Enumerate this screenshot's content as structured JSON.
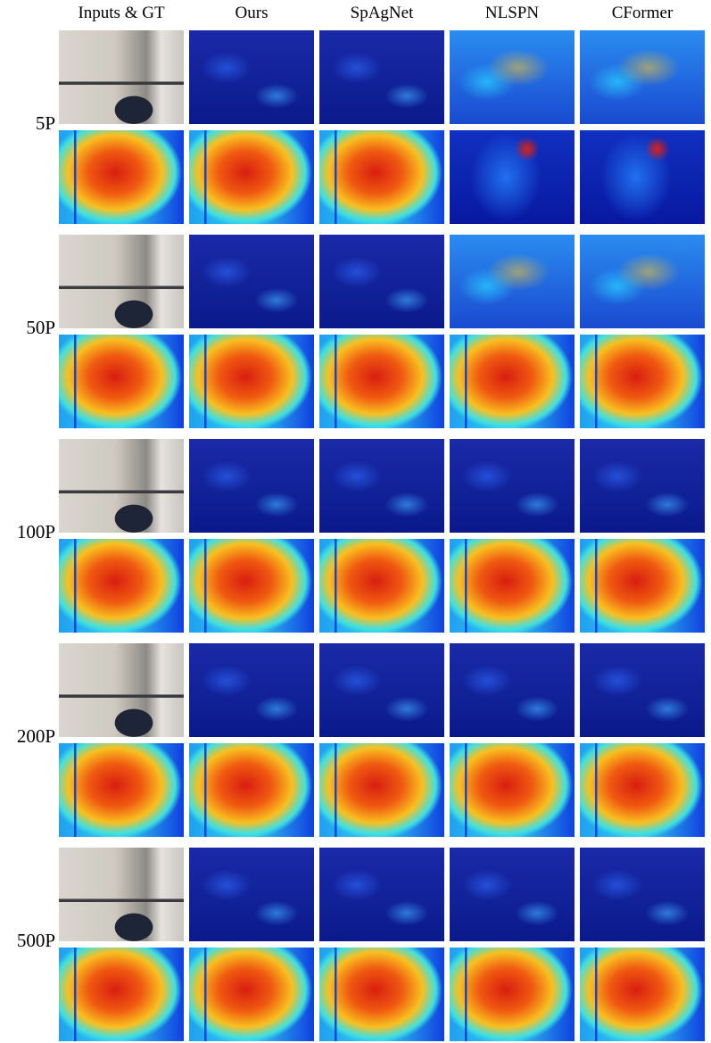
{
  "columns": [
    "Inputs & GT",
    "Ours",
    "SpAgNet",
    "NLSPN",
    "CFormer"
  ],
  "rows": [
    {
      "label": "5P"
    },
    {
      "label": "50P"
    },
    {
      "label": "100P"
    },
    {
      "label": "200P"
    },
    {
      "label": "500P"
    }
  ]
}
